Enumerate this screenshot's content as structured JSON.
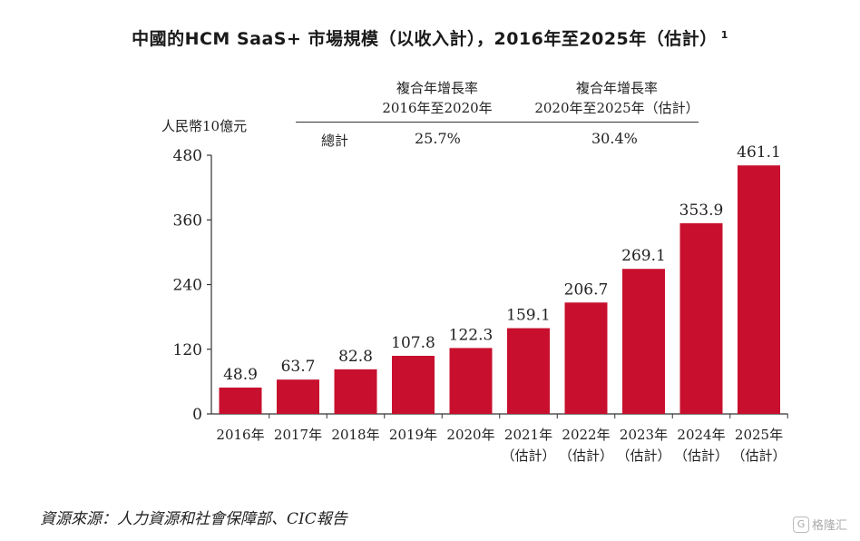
{
  "title": "中國的HCM SaaS+ 市場規模（以收入計），2016年至2025年（估計）",
  "title_note": "1",
  "unit_label": "人民幣10億元",
  "cagr": {
    "col1_line1": "複合年增長率",
    "col1_line2": "2016年至2020年",
    "col2_line1": "複合年增長率",
    "col2_line2": "2020年至2025年（估計）",
    "row_label": "總計",
    "col1_value": "25.7%",
    "col2_value": "30.4%"
  },
  "source": "資源來源：人力資源和社會保障部、CIC報告",
  "watermark": "格隆汇",
  "watermark_logo": "G",
  "chart_data": {
    "type": "bar",
    "title": "中國的HCM SaaS+ 市場規模（以收入計），2016年至2025年（估計）",
    "ylabel": "人民幣10億元",
    "xlabel": "",
    "ylim": [
      0,
      480
    ],
    "yticks": [
      "0",
      "120",
      "240",
      "360",
      "480"
    ],
    "grid": false,
    "bar_color": "#c8102e",
    "categories": [
      [
        "2016年"
      ],
      [
        "2017年"
      ],
      [
        "2018年"
      ],
      [
        "2019年"
      ],
      [
        "2020年"
      ],
      [
        "2021年",
        "（估計）"
      ],
      [
        "2022年",
        "（估計）"
      ],
      [
        "2023年",
        "（估計）"
      ],
      [
        "2024年",
        "（估計）"
      ],
      [
        "2025年",
        "（估計）"
      ]
    ],
    "values": [
      48.9,
      63.7,
      82.8,
      107.8,
      122.3,
      159.1,
      206.7,
      269.1,
      353.9,
      461.1
    ],
    "value_labels": [
      "48.9",
      "63.7",
      "82.8",
      "107.8",
      "122.3",
      "159.1",
      "206.7",
      "269.1",
      "353.9",
      "461.1"
    ]
  }
}
